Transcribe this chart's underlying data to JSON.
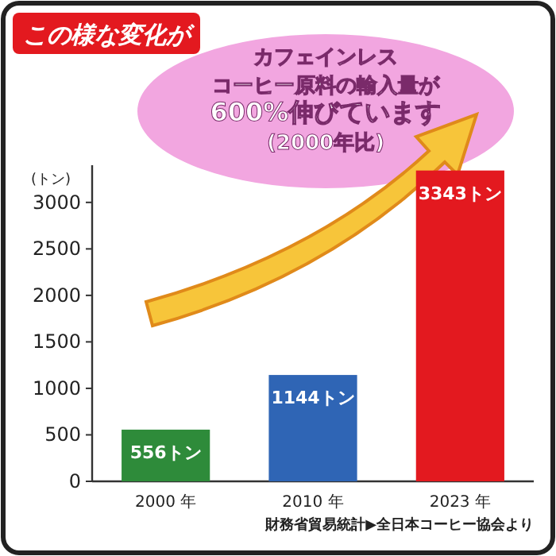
{
  "chart_data": {
    "type": "bar",
    "title": "この様な変化が",
    "ylabel": "(トン)",
    "categories": [
      "2000 年",
      "2010 年",
      "2023 年"
    ],
    "values": [
      556,
      1144,
      3343
    ],
    "colors": [
      "#2e8b3a",
      "#2f65b5",
      "#e3191f"
    ],
    "value_labels": [
      "556トン",
      "1144トン",
      "3343トン"
    ],
    "ylim": [
      0,
      3400
    ],
    "yticks": [
      0,
      500,
      1000,
      1500,
      2000,
      2500,
      3000
    ],
    "grid": false,
    "annotations": [
      "カフェインレス",
      "コーヒー原料の輸入量が",
      "600%伸びています",
      "(2000年比)",
      "財務省貿易統計▶全日本コーヒー協会より"
    ]
  }
}
